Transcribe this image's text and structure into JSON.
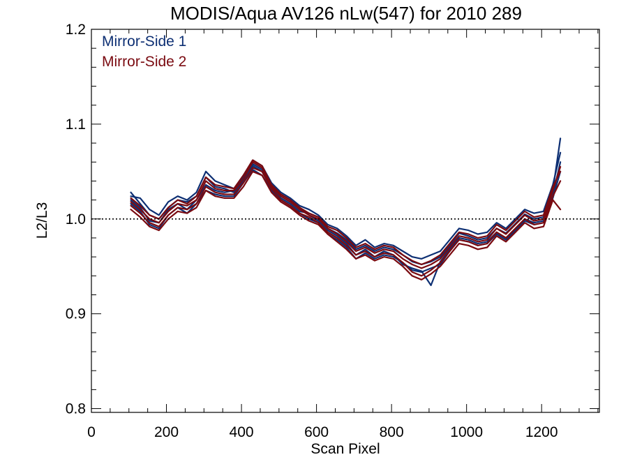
{
  "chart_data": {
    "type": "line",
    "title": "MODIS/Aqua AV126 nLw(547) for 2010 289",
    "xlabel": "Scan Pixel",
    "ylabel": "L2/L3",
    "xlim": [
      0,
      1354
    ],
    "ylim": [
      0.796,
      1.2
    ],
    "xticks": [
      0,
      200,
      400,
      600,
      800,
      1000,
      1200
    ],
    "yticks": [
      0.8,
      0.9,
      1.0,
      1.1,
      1.2
    ],
    "ytick_labels": [
      "0.8",
      "0.9",
      "1.0",
      "1.1",
      "1.2"
    ],
    "reference_line": 1.0,
    "legend_position": "top-left",
    "x": [
      105,
      130,
      155,
      180,
      205,
      230,
      255,
      280,
      305,
      330,
      355,
      380,
      405,
      430,
      455,
      480,
      505,
      530,
      555,
      580,
      605,
      630,
      655,
      680,
      705,
      730,
      755,
      780,
      805,
      830,
      855,
      880,
      905,
      930,
      955,
      980,
      1005,
      1030,
      1055,
      1080,
      1105,
      1130,
      1155,
      1180,
      1205,
      1230,
      1250
    ],
    "series": [
      {
        "name": "Mirror-Side 1",
        "color": "#0d2f73",
        "lines": [
          [
            1.028,
            1.016,
            1.004,
            1.0,
            1.012,
            1.02,
            1.018,
            1.024,
            1.044,
            1.034,
            1.032,
            1.028,
            1.04,
            1.056,
            1.05,
            1.032,
            1.022,
            1.016,
            1.008,
            1.006,
            1.002,
            0.99,
            0.985,
            0.978,
            0.968,
            0.972,
            0.966,
            0.97,
            0.968,
            0.962,
            0.955,
            0.952,
            0.955,
            0.96,
            0.972,
            0.985,
            0.982,
            0.978,
            0.98,
            0.99,
            0.985,
            0.995,
            1.005,
            1.0,
            1.002,
            1.03,
            1.085
          ],
          [
            1.02,
            1.012,
            0.998,
            0.996,
            1.01,
            1.016,
            1.01,
            1.02,
            1.036,
            1.03,
            1.028,
            1.03,
            1.044,
            1.058,
            1.052,
            1.036,
            1.026,
            1.02,
            1.012,
            1.004,
            0.998,
            0.988,
            0.982,
            0.974,
            0.962,
            0.968,
            0.96,
            0.966,
            0.962,
            0.952,
            0.948,
            0.945,
            0.93,
            0.955,
            0.968,
            0.98,
            0.978,
            0.974,
            0.976,
            0.986,
            0.98,
            0.99,
            1.0,
            0.996,
            0.998,
            1.025,
            1.06
          ],
          [
            1.024,
            1.022,
            1.01,
            1.004,
            1.018,
            1.024,
            1.02,
            1.028,
            1.05,
            1.04,
            1.036,
            1.032,
            1.046,
            1.062,
            1.056,
            1.038,
            1.028,
            1.022,
            1.014,
            1.01,
            1.004,
            0.994,
            0.99,
            0.982,
            0.972,
            0.978,
            0.97,
            0.974,
            0.972,
            0.966,
            0.96,
            0.958,
            0.962,
            0.966,
            0.978,
            0.99,
            0.988,
            0.984,
            0.986,
            0.996,
            0.99,
            1.0,
            1.01,
            1.006,
            1.008,
            1.036,
            1.07
          ],
          [
            1.016,
            1.008,
            0.994,
            0.99,
            1.004,
            1.012,
            1.006,
            1.016,
            1.03,
            1.026,
            1.024,
            1.024,
            1.038,
            1.052,
            1.046,
            1.03,
            1.02,
            1.014,
            1.006,
            1.0,
            0.996,
            0.984,
            0.978,
            0.97,
            0.958,
            0.964,
            0.958,
            0.962,
            0.96,
            0.954,
            0.946,
            0.944,
            0.948,
            0.952,
            0.966,
            0.978,
            0.976,
            0.972,
            0.974,
            0.984,
            0.978,
            0.988,
            0.998,
            0.994,
            0.996,
            1.022,
            1.05
          ]
        ]
      },
      {
        "name": "Mirror-Side 2",
        "color": "#7a0a10",
        "lines": [
          [
            1.018,
            1.01,
            1.0,
            0.996,
            1.008,
            1.016,
            1.014,
            1.02,
            1.04,
            1.032,
            1.03,
            1.03,
            1.042,
            1.06,
            1.054,
            1.034,
            1.024,
            1.018,
            1.01,
            1.004,
            1.0,
            0.99,
            0.984,
            0.976,
            0.966,
            0.97,
            0.964,
            0.968,
            0.966,
            0.958,
            0.952,
            0.948,
            0.952,
            0.958,
            0.97,
            0.982,
            0.98,
            0.976,
            0.978,
            0.99,
            0.984,
            0.994,
            1.004,
            0.998,
            1.0,
            1.03,
            1.055
          ],
          [
            1.014,
            1.006,
            0.996,
            0.992,
            1.004,
            1.012,
            1.01,
            1.016,
            1.034,
            1.028,
            1.026,
            1.026,
            1.038,
            1.054,
            1.05,
            1.032,
            1.02,
            1.014,
            1.006,
            1.002,
            0.996,
            0.986,
            0.98,
            0.972,
            0.962,
            0.966,
            0.96,
            0.964,
            0.962,
            0.954,
            0.944,
            0.94,
            0.946,
            0.954,
            0.966,
            0.978,
            0.976,
            0.972,
            0.974,
            0.986,
            0.98,
            0.99,
            1.0,
            0.994,
            0.996,
            1.024,
            1.04
          ],
          [
            1.022,
            1.014,
            1.004,
            1.0,
            1.012,
            1.02,
            1.016,
            1.024,
            1.044,
            1.036,
            1.034,
            1.032,
            1.046,
            1.062,
            1.056,
            1.036,
            1.026,
            1.02,
            1.012,
            1.006,
            1.002,
            0.992,
            0.988,
            0.98,
            0.97,
            0.974,
            0.968,
            0.972,
            0.97,
            0.962,
            0.956,
            0.952,
            0.956,
            0.962,
            0.974,
            0.986,
            0.984,
            0.98,
            0.982,
            0.994,
            0.988,
            0.998,
            1.008,
            1.002,
            1.004,
            1.034,
            1.05
          ],
          [
            1.01,
            1.002,
            0.992,
            0.988,
            1.0,
            1.008,
            1.006,
            1.012,
            1.03,
            1.024,
            1.022,
            1.022,
            1.034,
            1.05,
            1.046,
            1.028,
            1.018,
            1.012,
            1.004,
            0.998,
            0.994,
            0.984,
            0.976,
            0.968,
            0.958,
            0.962,
            0.956,
            0.96,
            0.958,
            0.95,
            0.94,
            0.936,
            0.942,
            0.95,
            0.962,
            0.974,
            0.972,
            0.968,
            0.97,
            0.982,
            0.976,
            0.986,
            0.996,
            0.99,
            0.992,
            1.02,
            1.01
          ]
        ]
      }
    ]
  }
}
